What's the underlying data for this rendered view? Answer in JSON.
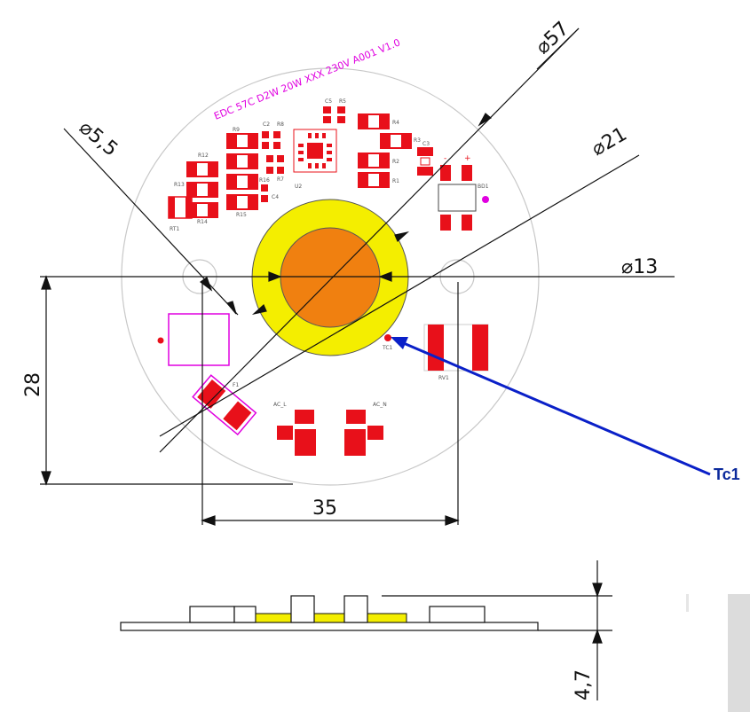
{
  "drawing": {
    "board_marking": "EDC 57C D2W 20W XXX 230V A001 V1.0",
    "dimensions": {
      "d57": "⌀57",
      "d21": "⌀21",
      "d13": "⌀13",
      "d5_5": "⌀5,5",
      "height": "28",
      "width": "35",
      "thickness": "4,7"
    },
    "callout": {
      "label": "Tc1"
    },
    "silkscreen": {
      "rt1": "RT1",
      "r13": "R13",
      "r12": "R12",
      "r14": "R14",
      "r15": "R15",
      "r16": "R16",
      "r7": "R7",
      "r9": "R9",
      "r8": "R8",
      "c2": "C2",
      "c4": "C4",
      "u2": "U2",
      "c5": "C5",
      "r5": "R5",
      "r4": "R4",
      "r3": "R3",
      "r2": "R2",
      "r1": "R1",
      "c3": "C3",
      "bd1": "BD1",
      "tc1": "TC1",
      "rv1": "RV1",
      "f1": "F1",
      "ac_l": "AC_L",
      "ac_n": "AC_N",
      "minus": "-",
      "plus": "+"
    },
    "colors": {
      "outline": "#c8c8c8",
      "pads": "#e8101a",
      "silk": "#e000e0",
      "led_outer": "#f4ee00",
      "led_inner": "#f08010",
      "arrow": "#0a20c8",
      "lines": "#111111"
    }
  }
}
